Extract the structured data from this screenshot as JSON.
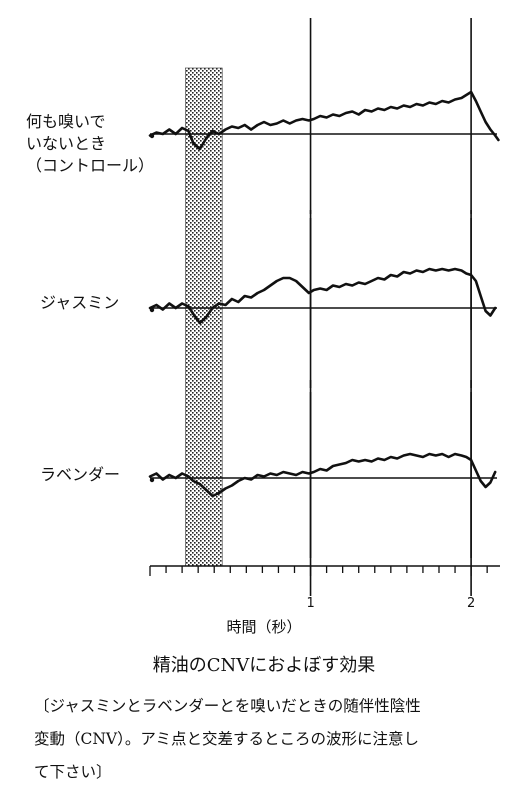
{
  "chart_data": {
    "type": "line",
    "title": "精油のCNVにおよぼす効果",
    "xlabel": "時間（秒）",
    "xlim": [
      0.0,
      2.18
    ],
    "ticks": [
      {
        "value": 1,
        "label": "1"
      },
      {
        "value": 2,
        "label": "2"
      }
    ],
    "highlight_band": [
      0.22,
      0.45
    ],
    "ylim": [
      -10,
      35
    ],
    "series": [
      {
        "label": "何も嗅いで\nいないとき\n（コントロール）",
        "x": [
          0.0,
          0.04,
          0.08,
          0.12,
          0.16,
          0.2,
          0.24,
          0.27,
          0.31,
          0.35,
          0.39,
          0.43,
          0.47,
          0.51,
          0.55,
          0.59,
          0.63,
          0.67,
          0.71,
          0.75,
          0.79,
          0.83,
          0.87,
          0.91,
          0.95,
          0.99,
          1.02,
          1.06,
          1.1,
          1.14,
          1.18,
          1.22,
          1.26,
          1.3,
          1.34,
          1.38,
          1.42,
          1.46,
          1.5,
          1.54,
          1.58,
          1.62,
          1.66,
          1.7,
          1.74,
          1.78,
          1.82,
          1.86,
          1.9,
          1.94,
          1.97,
          2.0,
          2.03,
          2.06,
          2.09,
          2.12,
          2.15,
          2.17
        ],
        "y": [
          -1,
          1,
          0,
          3,
          0,
          4,
          2,
          -6,
          -10,
          -3,
          2,
          0,
          3,
          5,
          4,
          6,
          3,
          6,
          8,
          6,
          7,
          9,
          7,
          9,
          10,
          9,
          10,
          12,
          11,
          13,
          12,
          14,
          15,
          13,
          16,
          15,
          17,
          16,
          18,
          17,
          19,
          18,
          20,
          19,
          21,
          20,
          22,
          21,
          23,
          24,
          26,
          28,
          22,
          15,
          8,
          3,
          -1,
          -4
        ]
      },
      {
        "label": "ジャスミン",
        "x": [
          0.0,
          0.04,
          0.08,
          0.12,
          0.16,
          0.2,
          0.24,
          0.27,
          0.31,
          0.35,
          0.39,
          0.43,
          0.47,
          0.51,
          0.55,
          0.59,
          0.63,
          0.67,
          0.71,
          0.75,
          0.79,
          0.83,
          0.87,
          0.91,
          0.95,
          0.99,
          1.02,
          1.06,
          1.1,
          1.14,
          1.18,
          1.22,
          1.26,
          1.3,
          1.34,
          1.38,
          1.42,
          1.46,
          1.5,
          1.54,
          1.58,
          1.62,
          1.66,
          1.7,
          1.74,
          1.78,
          1.82,
          1.86,
          1.9,
          1.94,
          1.97,
          2.0,
          2.03,
          2.06,
          2.09,
          2.12,
          2.15
        ],
        "y": [
          0,
          2,
          -1,
          3,
          0,
          3,
          1,
          -4,
          -10,
          -6,
          0,
          3,
          2,
          6,
          4,
          8,
          7,
          10,
          12,
          15,
          18,
          20,
          20,
          18,
          14,
          10,
          12,
          13,
          12,
          15,
          14,
          16,
          15,
          17,
          16,
          18,
          20,
          19,
          22,
          21,
          24,
          23,
          25,
          24,
          26,
          25,
          26,
          25,
          26,
          25,
          23,
          22,
          18,
          8,
          -2,
          -5,
          0
        ]
      },
      {
        "label": "ラベンダー",
        "x": [
          0.0,
          0.04,
          0.08,
          0.12,
          0.16,
          0.2,
          0.24,
          0.27,
          0.31,
          0.35,
          0.39,
          0.43,
          0.47,
          0.51,
          0.55,
          0.59,
          0.63,
          0.67,
          0.71,
          0.75,
          0.79,
          0.83,
          0.87,
          0.91,
          0.95,
          0.99,
          1.02,
          1.06,
          1.1,
          1.14,
          1.18,
          1.22,
          1.26,
          1.3,
          1.34,
          1.38,
          1.42,
          1.46,
          1.5,
          1.54,
          1.58,
          1.62,
          1.66,
          1.7,
          1.74,
          1.78,
          1.82,
          1.86,
          1.9,
          1.94,
          1.97,
          2.0,
          2.03,
          2.06,
          2.09,
          2.12,
          2.15
        ],
        "y": [
          1,
          3,
          -1,
          2,
          0,
          3,
          1,
          -2,
          -4,
          -8,
          -12,
          -10,
          -7,
          -5,
          -2,
          0,
          -1,
          2,
          1,
          3,
          2,
          4,
          3,
          2,
          4,
          3,
          4,
          6,
          5,
          8,
          9,
          10,
          12,
          11,
          12,
          11,
          13,
          12,
          14,
          13,
          15,
          16,
          15,
          14,
          16,
          15,
          16,
          14,
          16,
          15,
          14,
          12,
          5,
          -2,
          -6,
          -3,
          4
        ]
      }
    ]
  },
  "caption": {
    "title": "精油のCNVにおよぼす効果",
    "body": "〔ジャスミンとラベンダーとを嗅いだときの随伴性陰性\n変動（CNV）。アミ点と交差するところの波形に注意し\nて下さい〕"
  }
}
